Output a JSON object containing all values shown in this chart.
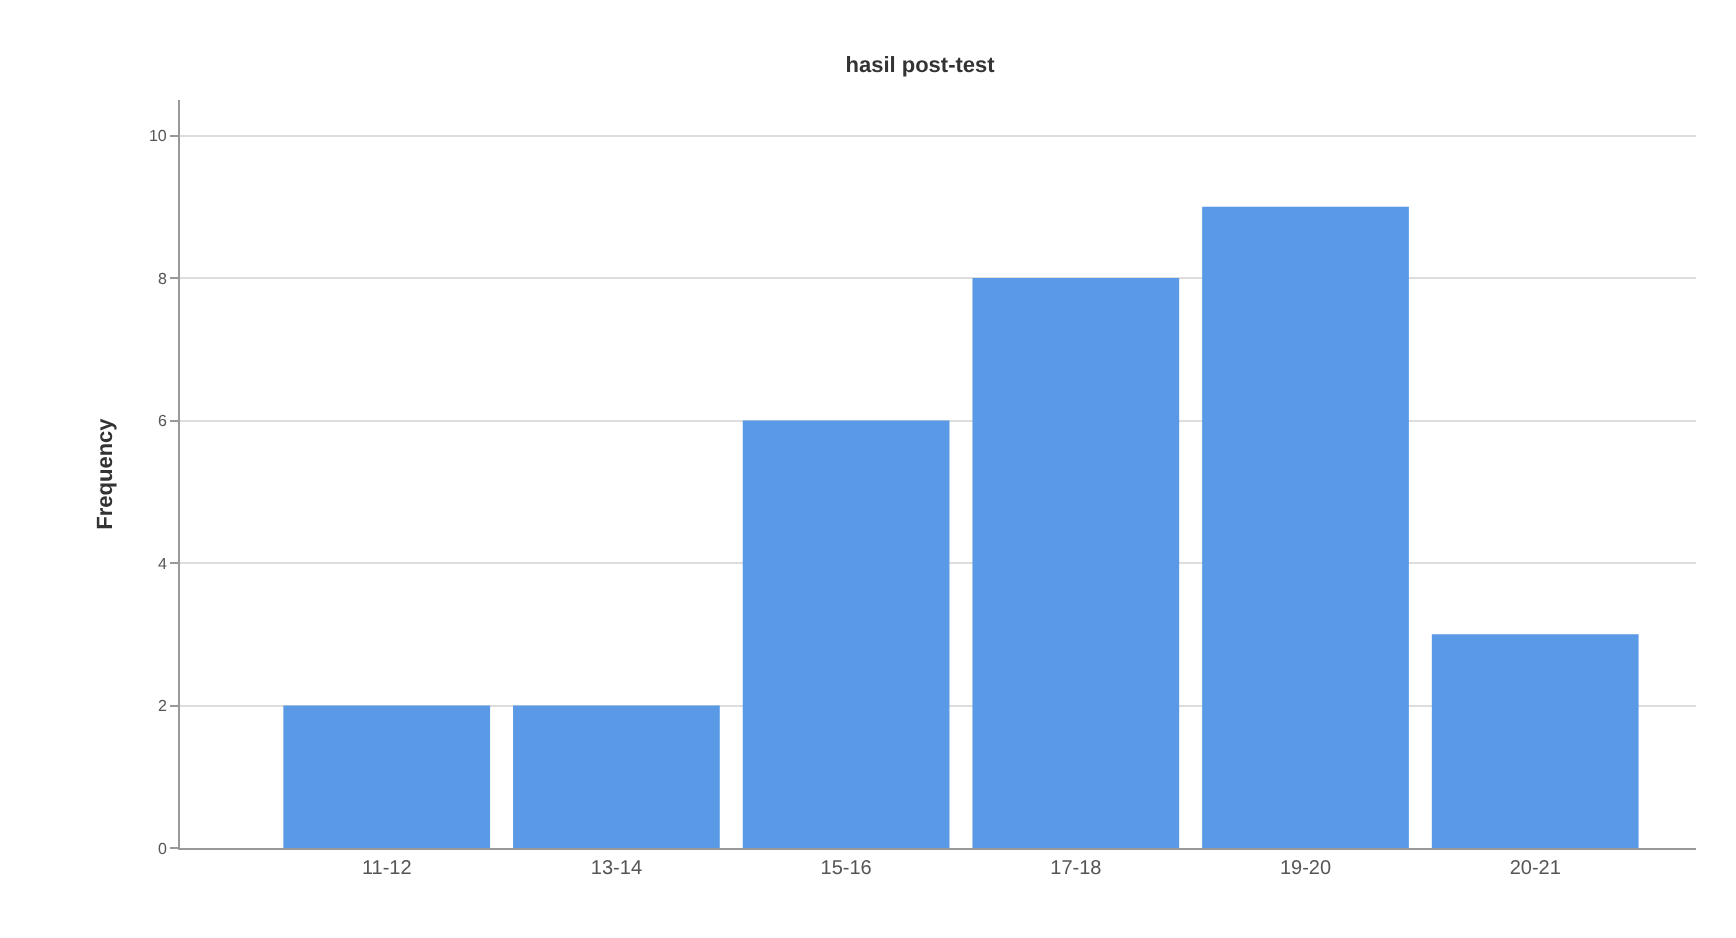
{
  "chart_data": {
    "type": "bar",
    "title": "hasil post-test",
    "ylabel": "Frequency",
    "categories": [
      "11-12",
      "13-14",
      "15-16",
      "17-18",
      "19-20",
      "20-21"
    ],
    "values": [
      2,
      2,
      6,
      8,
      9,
      3
    ],
    "color": "#5a99e6",
    "ylim": [
      0,
      10.5
    ],
    "yticks": [
      0,
      2,
      4,
      6,
      8,
      10
    ],
    "grid": "y",
    "legend": false
  }
}
